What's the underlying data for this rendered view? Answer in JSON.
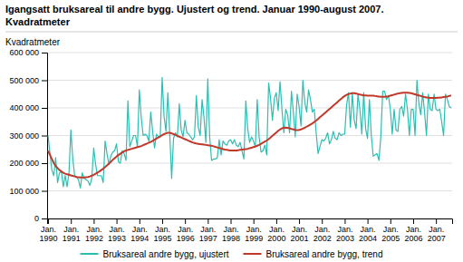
{
  "chart_data": {
    "type": "line",
    "title": "Igangsatt bruksareal til andre bygg. Ujustert og trend. Januar 1990-august 2007.",
    "subtitle": "Kvadratmeter",
    "ylabel": "Kvadratmeter",
    "categories": [
      "Jan.\n1990",
      null,
      null,
      null,
      null,
      null,
      null,
      null,
      null,
      null,
      null,
      null,
      "Jan.\n1991",
      null,
      null,
      null,
      null,
      null,
      null,
      null,
      null,
      null,
      null,
      null,
      "Jan.\n1992",
      null,
      null,
      null,
      null,
      null,
      null,
      null,
      null,
      null,
      null,
      null,
      "Jan.\n1993",
      null,
      null,
      null,
      null,
      null,
      null,
      null,
      null,
      null,
      null,
      null,
      "Jan.\n1994",
      null,
      null,
      null,
      null,
      null,
      null,
      null,
      null,
      null,
      null,
      null,
      "Jan.\n1995",
      null,
      null,
      null,
      null,
      null,
      null,
      null,
      null,
      null,
      null,
      null,
      "Jan.\n1996",
      null,
      null,
      null,
      null,
      null,
      null,
      null,
      null,
      null,
      null,
      null,
      "Jan.\n1997",
      null,
      null,
      null,
      null,
      null,
      null,
      null,
      null,
      null,
      null,
      null,
      "Jan.\n1998",
      null,
      null,
      null,
      null,
      null,
      null,
      null,
      null,
      null,
      null,
      null,
      "Jan.\n1999",
      null,
      null,
      null,
      null,
      null,
      null,
      null,
      null,
      null,
      null,
      null,
      "Jan.\n2000",
      null,
      null,
      null,
      null,
      null,
      null,
      null,
      null,
      null,
      null,
      null,
      "Jan.\n2001",
      null,
      null,
      null,
      null,
      null,
      null,
      null,
      null,
      null,
      null,
      null,
      "Jan.\n2002",
      null,
      null,
      null,
      null,
      null,
      null,
      null,
      null,
      null,
      null,
      null,
      "Jan.\n2003",
      null,
      null,
      null,
      null,
      null,
      null,
      null,
      null,
      null,
      null,
      null,
      "Jan.\n2004",
      null,
      null,
      null,
      null,
      null,
      null,
      null,
      null,
      null,
      null,
      null,
      "Jan.\n2005",
      null,
      null,
      null,
      null,
      null,
      null,
      null,
      null,
      null,
      null,
      null,
      "Jan.\n2006",
      null,
      null,
      null,
      null,
      null,
      null,
      null,
      null,
      null,
      null,
      null,
      "Jan.\n2007",
      null,
      null,
      null,
      null,
      null,
      null,
      null,
      null
    ],
    "series": [
      {
        "name": "Bruksareal andre bygg, ujustert",
        "color": "#2BBFB3",
        "values": [
          300000,
          235000,
          175000,
          155000,
          220000,
          130000,
          165000,
          170000,
          115000,
          155000,
          115000,
          165000,
          320000,
          215000,
          155000,
          150000,
          140000,
          110000,
          165000,
          145000,
          140000,
          135000,
          120000,
          145000,
          255000,
          195000,
          155000,
          155000,
          155000,
          130000,
          280000,
          235000,
          195000,
          225000,
          240000,
          245000,
          270000,
          205000,
          200000,
          245000,
          235000,
          210000,
          425000,
          260000,
          280000,
          300000,
          300000,
          260000,
          465000,
          365000,
          300000,
          305000,
          300000,
          280000,
          385000,
          315000,
          255000,
          305000,
          295000,
          295000,
          510000,
          370000,
          315000,
          455000,
          305000,
          145000,
          290000,
          310000,
          295000,
          415000,
          320000,
          295000,
          355000,
          310000,
          305000,
          295000,
          285000,
          295000,
          445000,
          330000,
          300000,
          430000,
          365000,
          275000,
          505000,
          295000,
          210000,
          215000,
          215000,
          220000,
          285000,
          230000,
          280000,
          270000,
          265000,
          280000,
          285000,
          270000,
          285000,
          265000,
          260000,
          275000,
          245000,
          215000,
          425000,
          325000,
          275000,
          295000,
          280000,
          260000,
          430000,
          295000,
          240000,
          245000,
          265000,
          230000,
          490000,
          435000,
          355000,
          435000,
          455000,
          390000,
          495000,
          395000,
          310000,
          395000,
          375000,
          310000,
          460000,
          385000,
          295000,
          450000,
          405000,
          335000,
          500000,
          420000,
          385000,
          465000,
          430000,
          385000,
          395000,
          310000,
          235000,
          260000,
          285000,
          280000,
          290000,
          310000,
          270000,
          285000,
          315000,
          290000,
          285000,
          310000,
          300000,
          305000,
          305000,
          410000,
          455000,
          330000,
          455000,
          355000,
          325000,
          450000,
          395000,
          305000,
          455000,
          325000,
          290000,
          430000,
          300000,
          225000,
          230000,
          235000,
          210000,
          295000,
          460000,
          460000,
          430000,
          445000,
          395000,
          305000,
          395000,
          320000,
          315000,
          395000,
          405000,
          370000,
          450000,
          395000,
          300000,
          395000,
          395000,
          300000,
          500000,
          415000,
          375000,
          455000,
          385000,
          300000,
          450000,
          395000,
          390000,
          450000,
          395000,
          390000,
          395000,
          350000,
          300000,
          450000,
          430000,
          405000,
          400000
        ]
      },
      {
        "name": "Bruksareal andre bygg, trend",
        "color": "#C0392B",
        "values": [
          245000,
          230000,
          215000,
          200000,
          190000,
          182000,
          175000,
          170000,
          165000,
          162000,
          160000,
          158000,
          156000,
          154000,
          152000,
          150000,
          149000,
          148000,
          148000,
          148000,
          149000,
          150000,
          152000,
          155000,
          158000,
          162000,
          166000,
          170000,
          175000,
          180000,
          186000,
          192000,
          198000,
          205000,
          212000,
          218000,
          224000,
          229000,
          234000,
          239000,
          243000,
          246000,
          248000,
          250000,
          252000,
          254000,
          256000,
          258000,
          260000,
          262000,
          265000,
          268000,
          271000,
          274000,
          277000,
          281000,
          285000,
          289000,
          293000,
          297000,
          301000,
          305000,
          308000,
          310000,
          310000,
          308000,
          305000,
          302000,
          299000,
          296000,
          293000,
          290000,
          287000,
          284000,
          281000,
          278000,
          275000,
          273000,
          271000,
          270000,
          269000,
          268000,
          267000,
          266000,
          265000,
          264000,
          263000,
          261000,
          259000,
          257000,
          255000,
          253000,
          251000,
          249000,
          248000,
          247000,
          246000,
          246000,
          246000,
          246000,
          247000,
          248000,
          249000,
          250000,
          251000,
          252000,
          254000,
          256000,
          258000,
          260000,
          263000,
          266000,
          270000,
          274000,
          278000,
          282000,
          287000,
          293000,
          299000,
          305000,
          311000,
          317000,
          322000,
          326000,
          328000,
          329000,
          328000,
          326000,
          324000,
          322000,
          320000,
          320000,
          320000,
          322000,
          325000,
          328000,
          332000,
          336000,
          340000,
          344000,
          349000,
          354000,
          360000,
          366000,
          372000,
          378000,
          384000,
          390000,
          396000,
          402000,
          408000,
          414000,
          420000,
          426000,
          432000,
          438000,
          443000,
          447000,
          450000,
          452000,
          453000,
          453000,
          452000,
          450000,
          448000,
          447000,
          445000,
          445000,
          444000,
          444000,
          444000,
          444000,
          443000,
          442000,
          441000,
          440000,
          440000,
          440000,
          441000,
          442000,
          444000,
          446000,
          448000,
          450000,
          452000,
          453000,
          454000,
          455000,
          455000,
          455000,
          454000,
          453000,
          451000,
          449000,
          447000,
          445000,
          443000,
          441000,
          439000,
          438000,
          437000,
          436000,
          436000,
          436000,
          436000,
          437000,
          437000,
          438000,
          439000,
          440000,
          441000,
          443000,
          445000
        ]
      }
    ],
    "ylim": [
      0,
      600000
    ],
    "yticks": [
      0,
      {
        "value": 100000,
        "label": "100 000"
      },
      {
        "value": 200000,
        "label": "200 000"
      },
      {
        "value": 300000,
        "label": "300 000"
      },
      {
        "value": 400000,
        "label": "400 000"
      },
      {
        "value": 500000,
        "label": "500 000"
      },
      {
        "value": 600000,
        "label": "600 000"
      }
    ],
    "grid": true,
    "legend": "bottom"
  }
}
